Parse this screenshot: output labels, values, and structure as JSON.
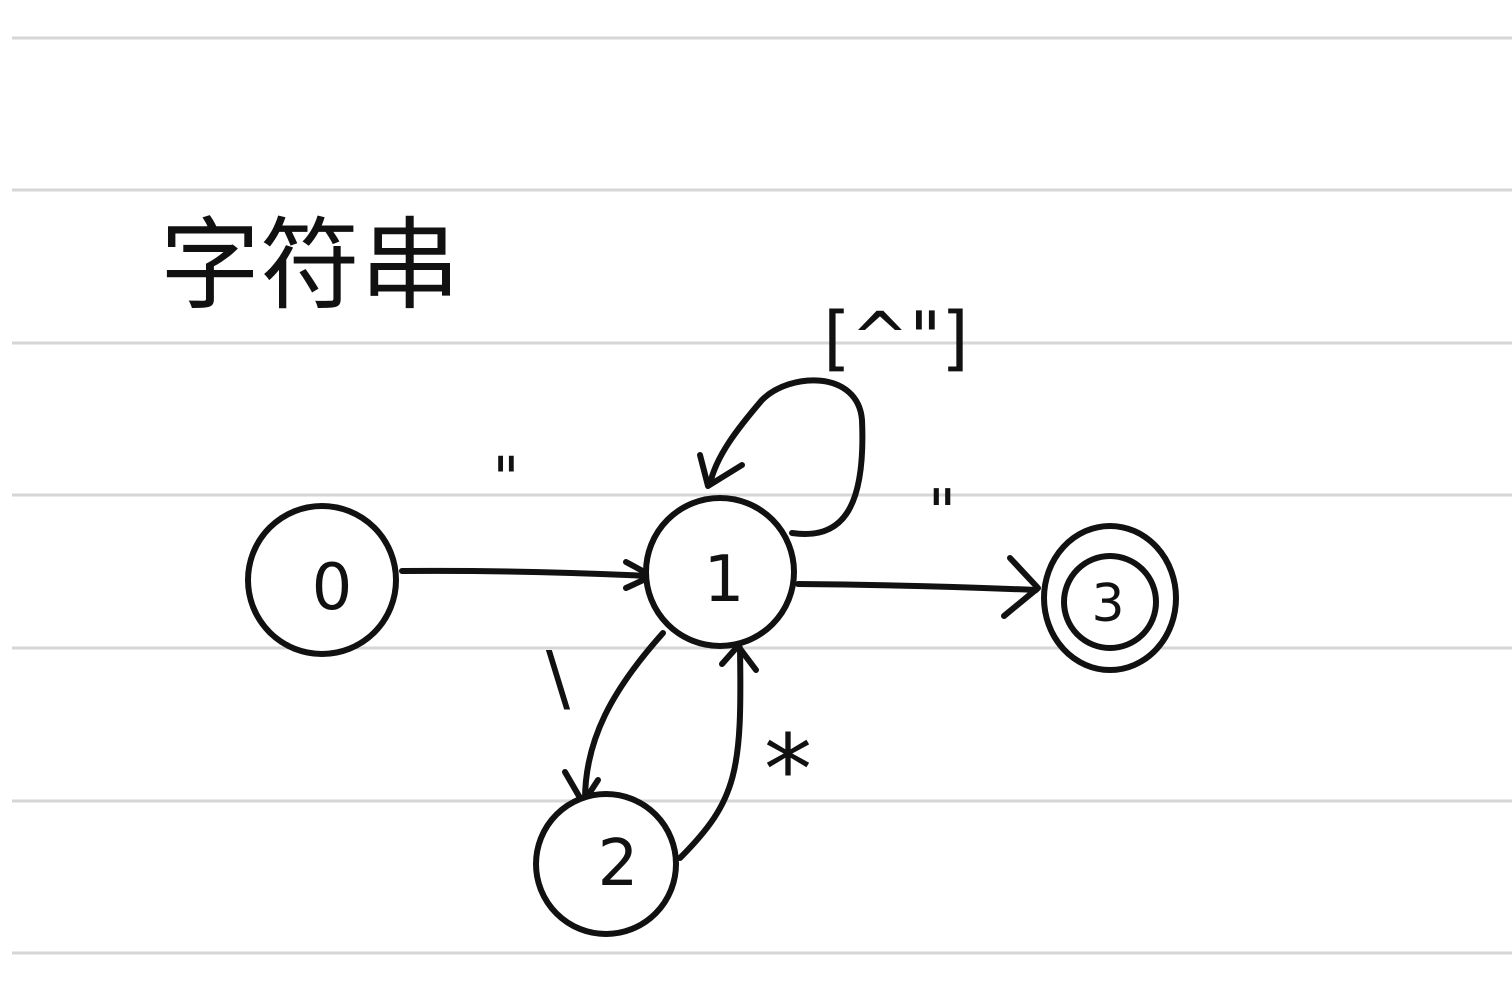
{
  "title": "字符串",
  "states": [
    {
      "id": "0",
      "label": "0",
      "accepting": false
    },
    {
      "id": "1",
      "label": "1",
      "accepting": false
    },
    {
      "id": "2",
      "label": "2",
      "accepting": false
    },
    {
      "id": "3",
      "label": "3",
      "accepting": true
    }
  ],
  "transitions": [
    {
      "from": "0",
      "to": "1",
      "label": "\""
    },
    {
      "from": "1",
      "to": "1",
      "label": "[^\"]"
    },
    {
      "from": "1",
      "to": "3",
      "label": "\""
    },
    {
      "from": "1",
      "to": "2",
      "label": "\\"
    },
    {
      "from": "2",
      "to": "1",
      "label": "*"
    }
  ],
  "colors": {
    "ink": "#111111",
    "ruling": "#d6d6d6",
    "paper": "#ffffff"
  }
}
